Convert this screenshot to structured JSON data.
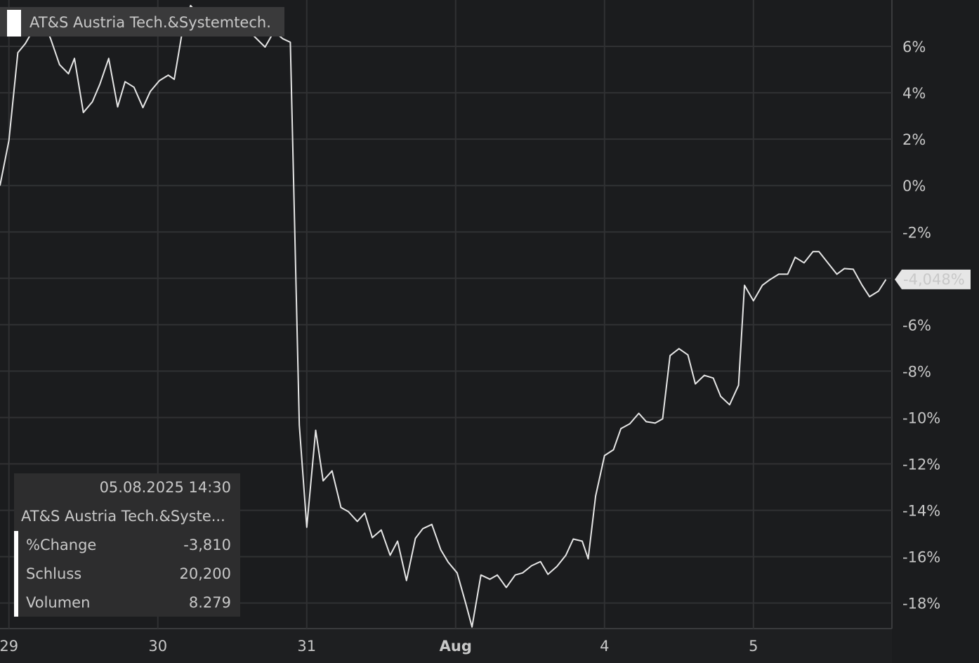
{
  "chart_data": {
    "type": "line",
    "x": [
      -0.06,
      0.0,
      0.06,
      0.11,
      0.17,
      0.23,
      0.28,
      0.34,
      0.4,
      0.44,
      0.5,
      0.56,
      0.61,
      0.67,
      0.73,
      0.78,
      0.84,
      0.9,
      0.95,
      1.01,
      1.07,
      1.11,
      1.16,
      1.22,
      1.27,
      1.36,
      1.5,
      1.64,
      1.72,
      1.78,
      1.84,
      1.89,
      1.95,
      2.0,
      2.06,
      2.11,
      2.17,
      2.23,
      2.28,
      2.34,
      2.39,
      2.44,
      2.5,
      2.56,
      2.61,
      2.67,
      2.73,
      2.78,
      2.84,
      2.9,
      2.95,
      3.01,
      3.07,
      3.11,
      3.17,
      3.23,
      3.28,
      3.34,
      3.4,
      3.45,
      3.51,
      3.57,
      3.62,
      3.68,
      3.74,
      3.79,
      3.85,
      3.89,
      3.94,
      4.0,
      4.06,
      4.11,
      4.17,
      4.23,
      4.28,
      4.34,
      4.39,
      4.44,
      4.5,
      4.56,
      4.61,
      4.67,
      4.73,
      4.78,
      4.84,
      4.9,
      4.94,
      5.0,
      5.06,
      5.11,
      5.17,
      5.23,
      5.28,
      5.34,
      5.4,
      5.44,
      5.5,
      5.56,
      5.61,
      5.67,
      5.73,
      5.78,
      5.84,
      5.89
    ],
    "series": [
      {
        "name": "AT&S Austria Tech.&Systemtech.",
        "color": "#e6e6e6",
        "values": [
          0,
          1.94,
          5.73,
          6.12,
          6.79,
          7.09,
          6.33,
          5.21,
          4.82,
          5.48,
          3.15,
          3.61,
          4.36,
          5.48,
          3.39,
          4.48,
          4.24,
          3.36,
          4.06,
          4.52,
          4.76,
          4.58,
          6.48,
          7.76,
          7.39,
          7.09,
          6.79,
          6.48,
          5.97,
          6.64,
          6.33,
          6.18,
          -10.33,
          -14.73,
          -10.55,
          -12.73,
          -12.3,
          -13.88,
          -14.06,
          -14.48,
          -14.12,
          -15.18,
          -14.85,
          -15.94,
          -15.33,
          -17.03,
          -15.21,
          -14.79,
          -14.61,
          -15.7,
          -16.24,
          -16.7,
          -18.06,
          -19.03,
          -16.79,
          -16.97,
          -16.79,
          -17.33,
          -16.79,
          -16.7,
          -16.39,
          -16.21,
          -16.76,
          -16.42,
          -15.94,
          -15.24,
          -15.33,
          -16.09,
          -13.39,
          -11.64,
          -11.39,
          -10.48,
          -10.27,
          -9.82,
          -10.18,
          -10.24,
          -10.06,
          -7.33,
          -7.03,
          -7.3,
          -8.55,
          -8.18,
          -8.3,
          -9.09,
          -9.45,
          -8.61,
          -4.3,
          -4.97,
          -4.3,
          -4.06,
          -3.82,
          -3.82,
          -3.09,
          -3.33,
          -2.85,
          -2.85,
          -3.33,
          -3.82,
          -3.58,
          -3.61,
          -4.3,
          -4.79,
          -4.55,
          -4.048
        ],
        "last_value_label": "-4,048%"
      }
    ],
    "xlim": [
      -0.06,
      5.93
    ],
    "xticks": [
      {
        "value": 0,
        "label": "29"
      },
      {
        "value": 1,
        "label": "30"
      },
      {
        "value": 2,
        "label": "31"
      },
      {
        "value": 3,
        "label": "Aug"
      },
      {
        "value": 4,
        "label": "4"
      },
      {
        "value": 5,
        "label": "5"
      }
    ],
    "ylim": [
      -19.1,
      8.0
    ],
    "yticks": [
      {
        "value": 6,
        "label": "6%"
      },
      {
        "value": 4,
        "label": "4%"
      },
      {
        "value": 2,
        "label": "2%"
      },
      {
        "value": 0,
        "label": "0%"
      },
      {
        "value": -2,
        "label": "-2%"
      },
      {
        "value": -4,
        "label": "-4%"
      },
      {
        "value": -6,
        "label": "-6%"
      },
      {
        "value": -8,
        "label": "-8%"
      },
      {
        "value": -10,
        "label": "-10%"
      },
      {
        "value": -12,
        "label": "-12%"
      },
      {
        "value": -14,
        "label": "-14%"
      },
      {
        "value": -16,
        "label": "-16%"
      },
      {
        "value": -18,
        "label": "-18%"
      }
    ],
    "grid": true,
    "tooltip": {
      "date": "05.08.2025 14:30",
      "name": "AT&S Austria Tech.&Syste...",
      "rows": [
        [
          "%Change",
          "-3,810"
        ],
        [
          "Schluss",
          "20,200"
        ],
        [
          "Volumen",
          "8.279"
        ]
      ]
    }
  }
}
